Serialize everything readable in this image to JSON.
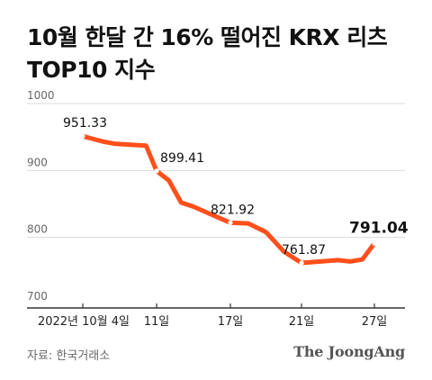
{
  "title_line1": "10월 한달 간 16% 떨어진 KRX 리츠",
  "title_line2": "TOP10 지수",
  "source": "자료: 한국거래소",
  "brand": "The JoongAng",
  "colors": {
    "line": "#ff4f1a",
    "axis": "#333333",
    "grid": "#d9d9d9",
    "tick_text": "#666666"
  },
  "chart_data": {
    "type": "line",
    "ylim": [
      700,
      1000
    ],
    "yticks": [
      700,
      800,
      900,
      1000
    ],
    "x_tick_labels": [
      {
        "day": 4,
        "label": "2022년 10월 4일"
      },
      {
        "day": 11,
        "label": "11일"
      },
      {
        "day": 17,
        "label": "17일"
      },
      {
        "day": 21,
        "label": "21일"
      },
      {
        "day": 27,
        "label": "27일"
      }
    ],
    "series": [
      {
        "points": [
          {
            "day": 4,
            "value": 951.33
          },
          {
            "day": 5,
            "value": 947
          },
          {
            "day": 6,
            "value": 943
          },
          {
            "day": 7,
            "value": 940
          },
          {
            "day": 10,
            "value": 937
          },
          {
            "day": 11,
            "value": 899.41
          },
          {
            "day": 12,
            "value": 885
          },
          {
            "day": 13,
            "value": 852
          },
          {
            "day": 14,
            "value": 846
          },
          {
            "day": 17,
            "value": 821.92
          },
          {
            "day": 18,
            "value": 821
          },
          {
            "day": 19,
            "value": 808
          },
          {
            "day": 20,
            "value": 779
          },
          {
            "day": 21,
            "value": 761.87
          },
          {
            "day": 24,
            "value": 766
          },
          {
            "day": 25,
            "value": 764
          },
          {
            "day": 26,
            "value": 767
          },
          {
            "day": 27,
            "value": 791.04
          }
        ]
      }
    ],
    "data_labels": [
      {
        "day": 4,
        "value": 951.33,
        "text": "951.33",
        "emphasis": false
      },
      {
        "day": 11,
        "value": 899.41,
        "text": "899.41",
        "emphasis": false
      },
      {
        "day": 17,
        "value": 821.92,
        "text": "821.92",
        "emphasis": false
      },
      {
        "day": 21,
        "value": 761.87,
        "text": "761.87",
        "emphasis": false
      },
      {
        "day": 27,
        "value": 791.04,
        "text": "791.04",
        "emphasis": true
      }
    ],
    "grid": true
  }
}
